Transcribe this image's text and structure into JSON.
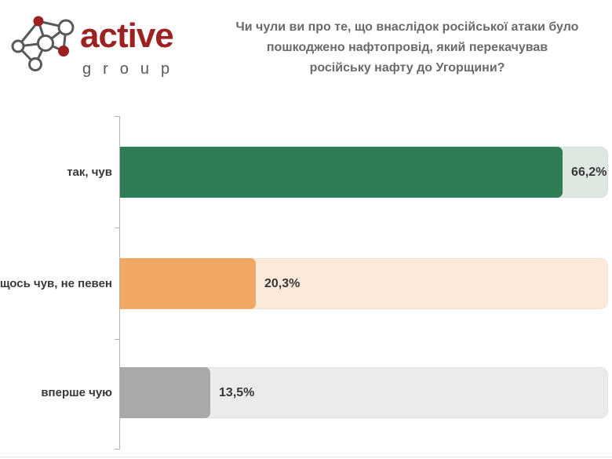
{
  "logo": {
    "name": "active",
    "subname": "group",
    "accent_color": "#9c2121",
    "gray_color": "#58595b"
  },
  "title": {
    "lines": [
      "Чи чули ви про те, що внаслідок російської атаки було",
      "пошкоджено нафтопровід, який перекачував",
      "російську нафту до Угорщини?"
    ],
    "color": "#6a6a6a"
  },
  "chart_data": {
    "type": "bar",
    "orientation": "horizontal",
    "title": "Чи чули ви про те, що внаслідок російської атаки було пошкоджено нафтопровід, який перекачував російську нафту до Угорщини?",
    "categories": [
      "так, чув",
      "щось чув, не певен",
      "вперше чую"
    ],
    "values": [
      66.2,
      20.3,
      13.5
    ],
    "value_labels": [
      "66,2%",
      "20,3%",
      "13,5%"
    ],
    "xlabel": "",
    "ylabel": "",
    "xmax": 73,
    "grid": false,
    "legend": false,
    "value_label_position": "outside-end",
    "rows": [
      {
        "label": "так, чув",
        "value": 66.2,
        "value_label": "66,2%",
        "bar_color": "#2e7d54",
        "track_color": "#dde8e1"
      },
      {
        "label": "щось чув, не певен",
        "value": 20.3,
        "value_label": "20,3%",
        "bar_color": "#f1a864",
        "track_color": "#fbe9d9"
      },
      {
        "label": "вперше чую",
        "value": 13.5,
        "value_label": "13,5%",
        "bar_color": "#a9a9a9",
        "track_color": "#ebebeb"
      }
    ]
  }
}
